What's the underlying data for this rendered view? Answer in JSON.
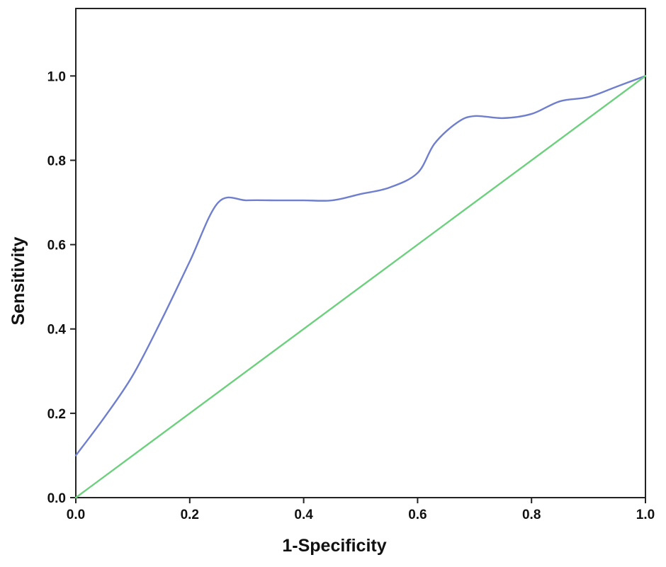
{
  "chart_data": {
    "type": "line",
    "title": "",
    "xlabel": "1-Specificity",
    "ylabel": "Sensitivity",
    "xlim": [
      0,
      1.0
    ],
    "ylim": [
      0,
      1.16
    ],
    "x_ticks": [
      0.0,
      0.2,
      0.4,
      0.6,
      0.8,
      1.0
    ],
    "x_tick_labels": [
      "0.0",
      "0.2",
      "0.4",
      "0.6",
      "0.8",
      "1.0"
    ],
    "y_ticks": [
      0.0,
      0.2,
      0.4,
      0.6,
      0.8,
      1.0
    ],
    "y_tick_labels": [
      "0.0",
      "0.2",
      "0.4",
      "0.6",
      "0.8",
      "1.0"
    ],
    "grid": false,
    "legend": "none",
    "series": [
      {
        "color": "#6f7fce",
        "smooth": true,
        "x": [
          0.0,
          0.05,
          0.1,
          0.15,
          0.2,
          0.25,
          0.3,
          0.35,
          0.4,
          0.45,
          0.5,
          0.55,
          0.6,
          0.63,
          0.67,
          0.7,
          0.75,
          0.8,
          0.85,
          0.9,
          0.95,
          1.0
        ],
        "y": [
          0.1,
          0.19,
          0.29,
          0.42,
          0.56,
          0.7,
          0.705,
          0.705,
          0.705,
          0.705,
          0.72,
          0.735,
          0.77,
          0.84,
          0.89,
          0.905,
          0.9,
          0.91,
          0.94,
          0.95,
          0.975,
          1.0
        ]
      },
      {
        "color": "#6dd07e",
        "smooth": false,
        "x": [
          0.0,
          1.0
        ],
        "y": [
          0.0,
          1.0
        ]
      }
    ]
  }
}
